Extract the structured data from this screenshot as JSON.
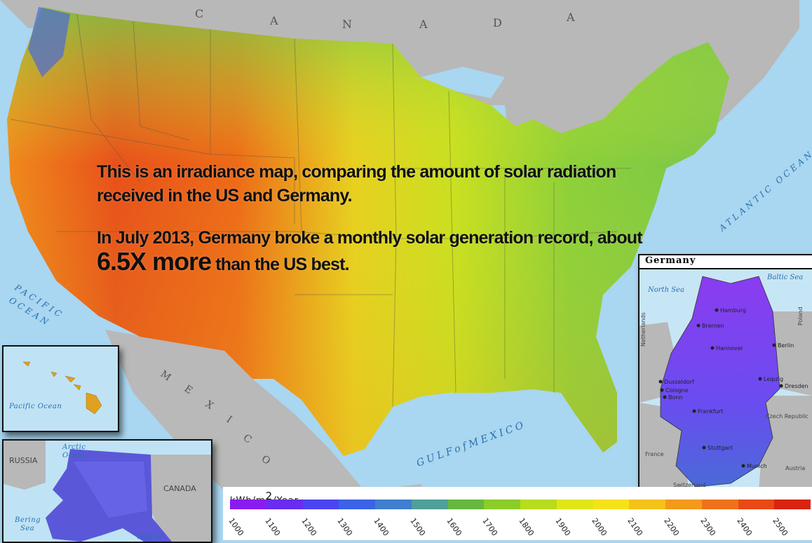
{
  "headline": {
    "line1": "This is an irradiance map, comparing the amount of solar radiation received in the US and Germany.",
    "line2_pre": "In July 2013, Germany broke a monthly solar generation record, about ",
    "line2_big": "6.5X more",
    "line2_post": " than the US best."
  },
  "labels": {
    "canada_letters": [
      "C",
      "A",
      "N",
      "A",
      "D",
      "A"
    ],
    "mexico_letters": [
      "M",
      "E",
      "X",
      "I",
      "C",
      "O"
    ],
    "pacific": [
      "PACIFIC",
      "OCEAN"
    ],
    "atlantic": "ATLANTIC OCEAN",
    "gulf": "GULFofMEXICO"
  },
  "hawaii": {
    "ocean": "Pacific Ocean"
  },
  "alaska": {
    "russia": "RUSSIA",
    "canada": "CANADA",
    "arctic": [
      "Arctic",
      "Ocean"
    ],
    "bering": [
      "Bering",
      "Sea"
    ],
    "gulf_partial": "Gulf of"
  },
  "germany": {
    "title": "Germany",
    "north_sea": "North Sea",
    "baltic_sea": "Baltic Sea",
    "neighbors": [
      "Poland",
      "Czech Republic",
      "Austria",
      "Switzerland",
      "France",
      "Netherlands"
    ],
    "cities": [
      "Hamburg",
      "Bremen",
      "Hannover",
      "Berlin",
      "Leipzig",
      "Dresden",
      "Dusseldorf",
      "Cologne",
      "Bonn",
      "Frankfurt",
      "Stuttgart",
      "Munich"
    ]
  },
  "legend": {
    "unit_pre": "kWh/m",
    "unit_sup": "2",
    "unit_post": "/Year",
    "ticks": [
      "1000",
      "1100",
      "1200",
      "1300",
      "1400",
      "1500",
      "1600",
      "1700",
      "1800",
      "1900",
      "2000",
      "2100",
      "2200",
      "2300",
      "2400",
      "2500"
    ],
    "colors": [
      "#8b1cf0",
      "#6a2cf0",
      "#4a45f0",
      "#3a63e6",
      "#3f7fd0",
      "#4f9f9a",
      "#66b83e",
      "#8ccd2a",
      "#b8dc1e",
      "#e0e61a",
      "#f6e21a",
      "#f5c21a",
      "#f39a1a",
      "#ef721a",
      "#e84a16",
      "#d92410"
    ]
  }
}
